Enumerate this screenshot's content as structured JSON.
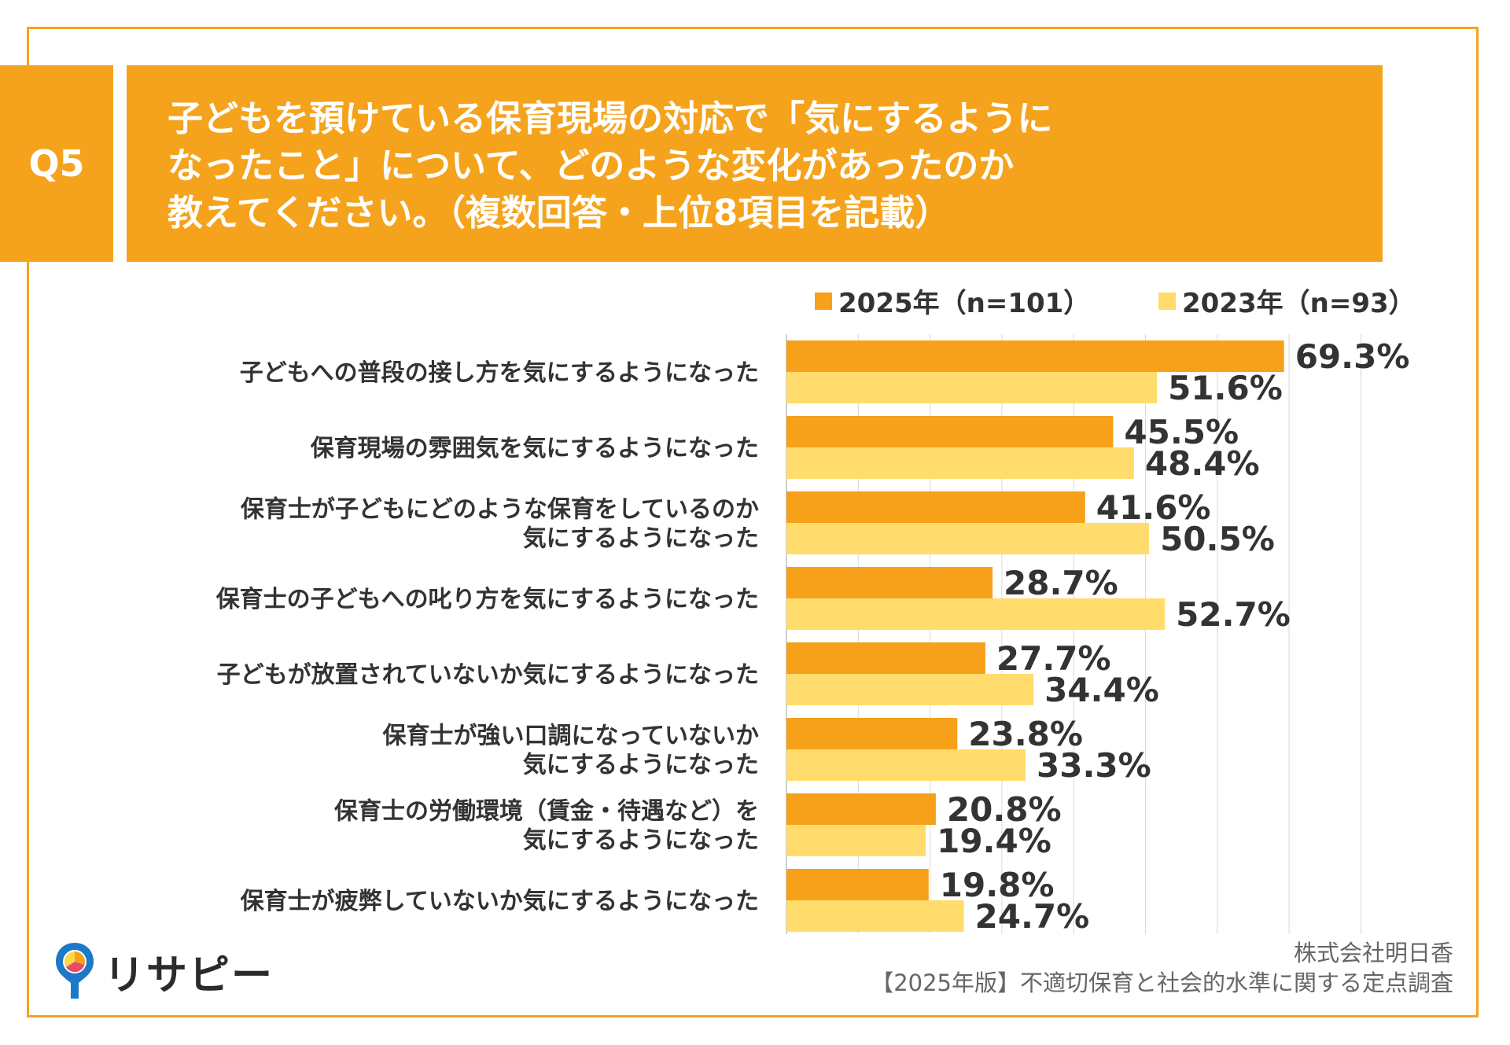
{
  "question_badge": "Q5",
  "title_lines": [
    "子どもを預けている保育現場の対応で「気にするように",
    "なったこと」について、どのような変化があったのか",
    "教えてください。（複数回答・上位8項目を記載）"
  ],
  "colors": {
    "accent": "#F5A31C",
    "series_2025": "#F7A01A",
    "series_2023": "#FFDC6B"
  },
  "logo": {
    "icon": "map-pin-pie-icon",
    "text": "リサピー"
  },
  "source": {
    "company": "株式会社明日香",
    "survey": "【2025年版】不適切保育と社会的水準に関する定点調査"
  },
  "chart_data": {
    "type": "bar",
    "orientation": "horizontal",
    "title": "",
    "xlim": [
      0,
      80
    ],
    "grid": true,
    "legend_position": "top-right",
    "categories": [
      [
        "子どもへの普段の接し方を気にするようになった"
      ],
      [
        "保育現場の雰囲気を気にするようになった"
      ],
      [
        "保育士が子どもにどのような保育をしているのか",
        "気にするようになった"
      ],
      [
        "保育士の子どもへの叱り方を気にするようになった"
      ],
      [
        "子どもが放置されていないか気にするようになった"
      ],
      [
        "保育士が強い口調になっていないか",
        "気にするようになった"
      ],
      [
        "保育士の労働環境（賃金・待遇など）を",
        "気にするようになった"
      ],
      [
        "保育士が疲弊していないか気にするようになった"
      ]
    ],
    "series": [
      {
        "name": "2025年（n=101）",
        "values": [
          69.3,
          45.5,
          41.6,
          28.7,
          27.7,
          23.8,
          20.8,
          19.8
        ],
        "labels": [
          "69.3%",
          "45.5%",
          "41.6%",
          "28.7%",
          "27.7%",
          "23.8%",
          "20.8%",
          "19.8%"
        ]
      },
      {
        "name": "2023年（n=93）",
        "values": [
          51.6,
          48.4,
          50.5,
          52.7,
          34.4,
          33.3,
          19.4,
          24.7
        ],
        "labels": [
          "51.6%",
          "48.4%",
          "50.5%",
          "52.7%",
          "34.4%",
          "33.3%",
          "19.4%",
          "24.7%"
        ]
      }
    ]
  }
}
